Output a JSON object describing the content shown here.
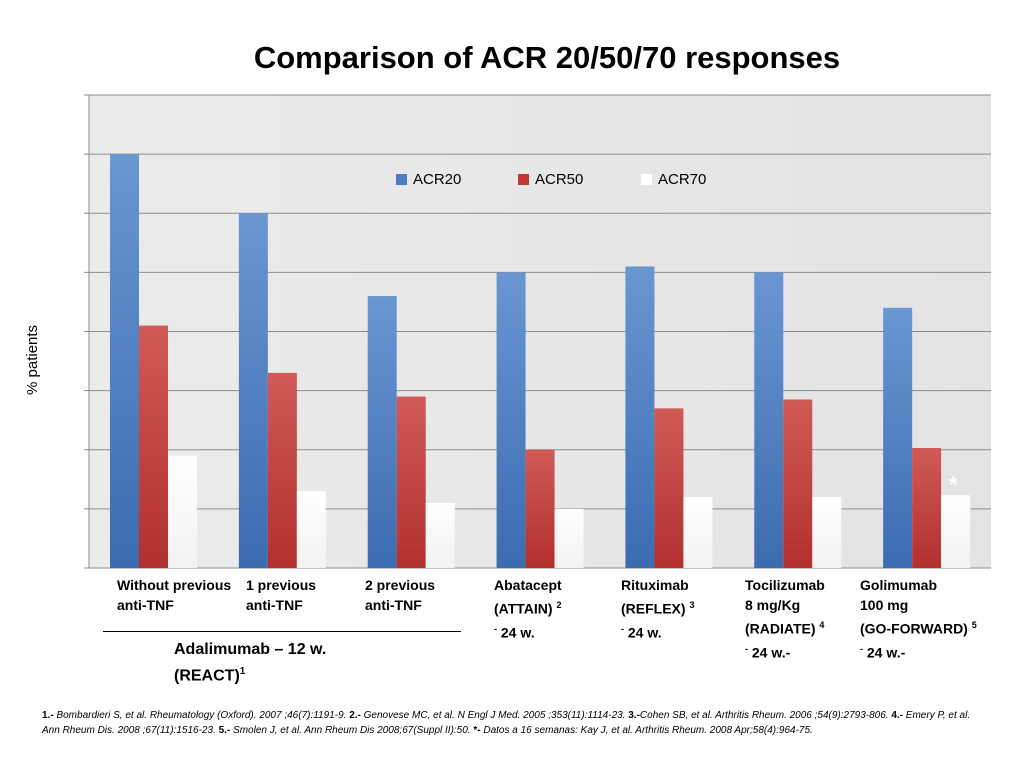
{
  "chart_data": {
    "type": "bar",
    "title": "Comparison of ACR 20/50/70 responses",
    "ylabel": "% patients",
    "xlabel": "",
    "ylim": [
      0,
      80
    ],
    "grid": true,
    "legend_position": "top-center",
    "categories": [
      "Without previous anti-TNF",
      "1 previous anti-TNF",
      "2 previous anti-TNF",
      "Abatacept (ATTAIN) 2 - 24 w.",
      "Rituximab (REFLEX) 3 - 24 w.",
      "Tocilizumab 8 mg/Kg (RADIATE) 4 - 24 w.-",
      "Golimumab 100 mg (GO-FORWARD) 5 - 24 w.-"
    ],
    "series": [
      {
        "name": "ACR20",
        "color": "#4a7cc0",
        "values": [
          70,
          60,
          46,
          50,
          51,
          50,
          44
        ]
      },
      {
        "name": "ACR50",
        "color": "#bf3a37",
        "values": [
          41,
          33,
          29,
          20,
          27,
          28.5,
          20.3
        ]
      },
      {
        "name": "ACR70",
        "color": "#ffffff",
        "values": [
          19,
          13,
          11,
          10,
          12,
          12,
          12.3
        ]
      }
    ]
  },
  "labels": {
    "cat0": {
      "l1": "Without previous",
      "l2": "anti-TNF"
    },
    "cat1": {
      "l1": "1 previous",
      "l2": "anti-TNF"
    },
    "cat2": {
      "l1": "2 previous",
      "l2": "anti-TNF"
    },
    "cat3": {
      "l1": "Abatacept",
      "l2": "(ATTAIN)",
      "sup": "2",
      "l3pre": "-",
      "l3": " 24 w."
    },
    "cat4": {
      "l1": "Rituximab",
      "l2": "(REFLEX)",
      "sup": "3",
      "l3pre": "-",
      "l3": " 24 w."
    },
    "cat5": {
      "l1": "Tocilizumab",
      "l2": "8 mg/Kg",
      "l3": "(RADIATE)",
      "sup": "4",
      "l4pre": "-",
      "l4": " 24 w.-"
    },
    "cat6": {
      "l1": "Golimumab",
      "l2": "100 mg",
      "l3": "(GO-FORWARD)",
      "sup": "5",
      "l4pre": "-",
      "l4": " 24 w.-"
    },
    "group": {
      "l1": "Adalimumab – 12 w.",
      "l2": "(REACT)",
      "sup": "1"
    },
    "asterisk": "*"
  },
  "references": {
    "r1n": "1.-",
    "r1": " Bombardieri S, et al. Rheumatology (Oxford). 2007 ;46(7):1191-9. ",
    "r2n": "2.-",
    "r2": " Genovese MC, et al. N Engl J Med. 2005 ;353(11):1114-23. ",
    "r3n": "3.-",
    "r3": "Cohen SB, et al. Arthritis Rheum. 2006 ;54(9):2793-806. ",
    "r4n": "4.-",
    "r4": " Emery P, et al. Ann Rheum Dis. 2008 ;67(11):1516-23. ",
    "r5n": "5.-",
    "r5": " Smolen J, et al. Ann Rheum Dis 2008;67(Suppl II):50. ",
    "r6n": "*-",
    "r6": " Datos a 16 semanas: Kay J, et al. Arthritis Rheum. 2008 Apr;58(4):964-75."
  }
}
